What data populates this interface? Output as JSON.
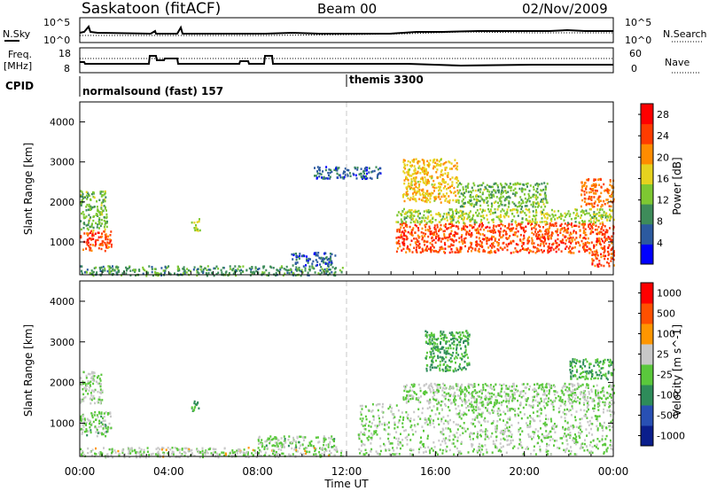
{
  "header": {
    "station": "Saskatoon (fitACF)",
    "beam": "Beam 00",
    "date": "02/Nov/2009"
  },
  "noise_panel": {
    "left_label": "N.Sky",
    "right_label": "N.Search",
    "left_ticks": [
      "10^5",
      "10^0"
    ],
    "right_ticks": [
      "10^5",
      "10^0"
    ]
  },
  "freq_panel": {
    "left_label_line1": "Freq.",
    "left_label_line2": "[MHz]",
    "right_label": "Nave",
    "left_ticks": [
      "18",
      "8"
    ],
    "right_ticks": [
      "60",
      "0"
    ]
  },
  "cpid": {
    "label": "CPID",
    "programs": [
      {
        "name": "normalsound (fast) 157",
        "start_hour": 0
      },
      {
        "name": "themis 3300",
        "start_hour": 12
      }
    ]
  },
  "colors": {
    "power_scale": [
      "#0000ff",
      "#2c5aa0",
      "#3e8c5a",
      "#7ec832",
      "#e6d21e",
      "#ff8c00",
      "#ff3c00",
      "#ff0000"
    ],
    "velocity_scale": [
      "#0a1e8c",
      "#2850b4",
      "#2e8c5a",
      "#5ac83c",
      "#c8c8c8",
      "#ff9600",
      "#ff5000",
      "#ff0000"
    ]
  },
  "chart_data": [
    {
      "type": "heatmap",
      "panel": "power",
      "ylabel": "Slant Range [km]",
      "xlabel": "",
      "ylim": [
        180,
        4500
      ],
      "xlim": [
        0,
        24
      ],
      "yticks": [
        "1000",
        "2000",
        "3000",
        "4000"
      ],
      "colorbar": {
        "label": "Power [dB]",
        "ticks": [
          "4",
          "8",
          "12",
          "16",
          "20",
          "24",
          "28"
        ],
        "range": [
          0,
          30
        ]
      },
      "regions": [
        {
          "t0": 0.0,
          "t1": 1.4,
          "r0": 800,
          "r1": 1300,
          "value": 24
        },
        {
          "t0": 0.0,
          "t1": 1.2,
          "r0": 1300,
          "r1": 2300,
          "value": 12
        },
        {
          "t0": 0.0,
          "t1": 11.8,
          "r0": 180,
          "r1": 420,
          "value": 10
        },
        {
          "t0": 5.0,
          "t1": 5.4,
          "r0": 1300,
          "r1": 1600,
          "value": 14
        },
        {
          "t0": 9.5,
          "t1": 11.5,
          "r0": 430,
          "r1": 760,
          "value": 6
        },
        {
          "t0": 10.5,
          "t1": 13.5,
          "r0": 2600,
          "r1": 2900,
          "value": 6
        },
        {
          "t0": 14.2,
          "t1": 24.0,
          "r0": 750,
          "r1": 1500,
          "value": 24
        },
        {
          "t0": 14.2,
          "t1": 24.0,
          "r0": 1500,
          "r1": 1850,
          "value": 14
        },
        {
          "t0": 14.5,
          "t1": 17.0,
          "r0": 2000,
          "r1": 3100,
          "value": 18
        },
        {
          "t0": 17.0,
          "t1": 21.0,
          "r0": 1900,
          "r1": 2500,
          "value": 12
        },
        {
          "t0": 22.5,
          "t1": 24.0,
          "r0": 1900,
          "r1": 2600,
          "value": 22
        },
        {
          "t0": 23.0,
          "t1": 24.0,
          "r0": 400,
          "r1": 800,
          "value": 24
        }
      ]
    },
    {
      "type": "heatmap",
      "panel": "velocity",
      "ylabel": "Slant Range [km]",
      "xlabel": "Time UT",
      "ylim": [
        180,
        4500
      ],
      "xlim": [
        0,
        24
      ],
      "yticks": [
        "1000",
        "2000",
        "3000",
        "4000"
      ],
      "xticks": [
        "00:00",
        "04:00",
        "08:00",
        "12:00",
        "16:00",
        "20:00",
        "00:00"
      ],
      "colorbar": {
        "label": "Velocity [m s^-1]",
        "ticks": [
          "1000",
          "500",
          "100",
          "25",
          "-25",
          "-100",
          "-500",
          "-1000"
        ],
        "range": [
          -1200,
          1200
        ]
      },
      "regions": [
        {
          "t0": 0.0,
          "t1": 1.4,
          "r0": 700,
          "r1": 1300,
          "value": -60
        },
        {
          "t0": 0.0,
          "t1": 1.0,
          "r0": 1500,
          "r1": 2300,
          "value": 0
        },
        {
          "t0": 0.0,
          "t1": 11.8,
          "r0": 180,
          "r1": 420,
          "value": 60
        },
        {
          "t0": 5.0,
          "t1": 5.4,
          "r0": 1300,
          "r1": 1600,
          "value": -300
        },
        {
          "t0": 8.0,
          "t1": 11.5,
          "r0": 430,
          "r1": 700,
          "value": -80
        },
        {
          "t0": 12.5,
          "t1": 24.0,
          "r0": 250,
          "r1": 1500,
          "value": 0
        },
        {
          "t0": 14.5,
          "t1": 24.0,
          "r0": 1500,
          "r1": 2000,
          "value": 0
        },
        {
          "t0": 15.5,
          "t1": 17.5,
          "r0": 2300,
          "r1": 3300,
          "value": -300
        },
        {
          "t0": 22.0,
          "t1": 24.0,
          "r0": 2100,
          "r1": 2600,
          "value": -300
        }
      ]
    }
  ]
}
